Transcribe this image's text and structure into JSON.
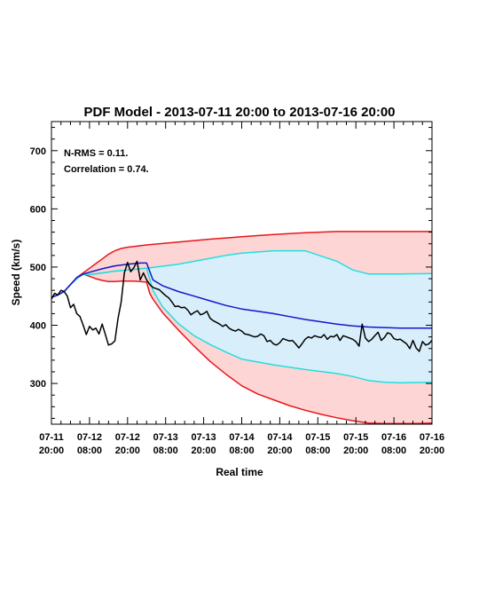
{
  "chart_data": {
    "type": "line",
    "title": "PDF Model - 2013-07-11 20:00 to 2013-07-16 20:00",
    "xlabel": "Real time",
    "ylabel": "Speed (km/s)",
    "xlim": [
      0,
      120
    ],
    "ylim": [
      230,
      750
    ],
    "yticks": [
      300,
      400,
      500,
      600,
      700
    ],
    "xticks": [
      {
        "x": 0,
        "line1": "07-11",
        "line2": "20:00"
      },
      {
        "x": 12,
        "line1": "07-12",
        "line2": "08:00"
      },
      {
        "x": 24,
        "line1": "07-12",
        "line2": "20:00"
      },
      {
        "x": 36,
        "line1": "07-13",
        "line2": "08:00"
      },
      {
        "x": 48,
        "line1": "07-13",
        "line2": "20:00"
      },
      {
        "x": 60,
        "line1": "07-14",
        "line2": "08:00"
      },
      {
        "x": 72,
        "line1": "07-14",
        "line2": "20:00"
      },
      {
        "x": 84,
        "line1": "07-15",
        "line2": "08:00"
      },
      {
        "x": 96,
        "line1": "07-15",
        "line2": "20:00"
      },
      {
        "x": 108,
        "line1": "07-16",
        "line2": "08:00"
      },
      {
        "x": 120,
        "line1": "07-16",
        "line2": "20:00"
      }
    ],
    "annotations": [
      "N-RMS = 0.11.",
      "Correlation = 0.74."
    ],
    "colors": {
      "outer_band_fill": "#fdd5d5",
      "inner_band_fill": "#d8effb",
      "outer_bound": "#e8161b",
      "inner_bound": "#22dede",
      "model": "#1414cc",
      "observed": "#000000"
    },
    "series": [
      {
        "role": "outer-upper",
        "x": [
          0,
          2,
          4,
          6,
          8,
          10,
          12,
          14,
          16,
          18,
          20,
          22,
          24,
          30,
          40,
          50,
          60,
          70,
          80,
          90,
          100,
          110,
          120
        ],
        "y": [
          448,
          452,
          458,
          470,
          482,
          490,
          498,
          506,
          514,
          522,
          528,
          532,
          534,
          538,
          543,
          548,
          552,
          556,
          559,
          561,
          561,
          561,
          561
        ]
      },
      {
        "role": "outer-lower",
        "x": [
          0,
          2,
          4,
          6,
          8,
          10,
          12,
          14,
          16,
          18,
          20,
          22,
          24,
          26,
          28,
          30,
          31,
          32,
          35,
          40,
          45,
          50,
          55,
          60,
          65,
          70,
          75,
          80,
          85,
          90,
          95,
          100,
          105,
          110,
          115,
          120
        ],
        "y": [
          448,
          452,
          458,
          470,
          480,
          488,
          484,
          480,
          477,
          475,
          475,
          476,
          476,
          476,
          475,
          474,
          455,
          445,
          422,
          392,
          364,
          338,
          316,
          296,
          282,
          272,
          262,
          254,
          247,
          241,
          236,
          232,
          231,
          231,
          231,
          232
        ]
      },
      {
        "role": "inner-upper",
        "x": [
          0,
          2,
          4,
          6,
          8,
          10,
          12,
          16,
          20,
          24,
          28,
          30,
          40,
          50,
          55,
          60,
          70,
          80,
          90,
          95,
          100,
          105,
          110,
          120
        ],
        "y": [
          448,
          452,
          458,
          470,
          480,
          488,
          487,
          490,
          493,
          495,
          497,
          498,
          505,
          515,
          520,
          524,
          528,
          528,
          510,
          495,
          488,
          488,
          488,
          489
        ]
      },
      {
        "role": "inner-lower",
        "x": [
          0,
          2,
          4,
          6,
          8,
          10,
          12,
          16,
          20,
          24,
          28,
          30,
          32,
          35,
          40,
          45,
          50,
          55,
          60,
          70,
          80,
          90,
          95,
          100,
          105,
          110,
          120
        ],
        "y": [
          448,
          452,
          458,
          470,
          480,
          488,
          487,
          490,
          493,
          495,
          497,
          498,
          460,
          432,
          403,
          382,
          367,
          354,
          342,
          332,
          324,
          317,
          312,
          305,
          302,
          301,
          302
        ]
      },
      {
        "role": "model",
        "x": [
          0,
          2,
          4,
          6,
          8,
          10,
          12,
          16,
          20,
          24,
          28,
          30,
          32,
          35,
          40,
          45,
          50,
          55,
          60,
          65,
          70,
          75,
          80,
          85,
          90,
          95,
          100,
          105,
          110,
          115,
          120
        ],
        "y": [
          448,
          452,
          458,
          470,
          482,
          488,
          491,
          497,
          502,
          505,
          507,
          507,
          478,
          468,
          458,
          450,
          442,
          434,
          428,
          424,
          420,
          415,
          410,
          406,
          402,
          399,
          397,
          396,
          395,
          395,
          395
        ]
      },
      {
        "role": "observed",
        "x": [
          0,
          1,
          2,
          3,
          4,
          5,
          6,
          7,
          8,
          9,
          10,
          11,
          12,
          13,
          14,
          15,
          16,
          17,
          18,
          19,
          20,
          21,
          22,
          23,
          24,
          25,
          26,
          27,
          28,
          29,
          30,
          31,
          32,
          33,
          34,
          35,
          36,
          37,
          38,
          39,
          40,
          41,
          42,
          43,
          44,
          45,
          46,
          47,
          48,
          49,
          50,
          51,
          52,
          53,
          54,
          55,
          56,
          57,
          58,
          59,
          60,
          61,
          62,
          63,
          64,
          65,
          66,
          67,
          68,
          69,
          70,
          71,
          72,
          73,
          74,
          75,
          76,
          77,
          78,
          79,
          80,
          81,
          82,
          83,
          84,
          85,
          86,
          87,
          88,
          89,
          90,
          91,
          92,
          93,
          94,
          95,
          96,
          97,
          98,
          99,
          100,
          101,
          102,
          103,
          104,
          105,
          106,
          107,
          108,
          109,
          110,
          111,
          112,
          113,
          114,
          115,
          116,
          117,
          118,
          119,
          120
        ],
        "y": [
          445,
          455,
          452,
          460,
          458,
          450,
          430,
          436,
          420,
          415,
          400,
          384,
          398,
          392,
          395,
          385,
          402,
          384,
          366,
          368,
          373,
          412,
          440,
          490,
          508,
          492,
          499,
          510,
          478,
          490,
          478,
          470,
          465,
          463,
          461,
          456,
          451,
          447,
          440,
          432,
          433,
          430,
          431,
          426,
          418,
          422,
          425,
          418,
          420,
          424,
          412,
          408,
          405,
          402,
          398,
          401,
          395,
          392,
          390,
          393,
          390,
          385,
          384,
          382,
          380,
          381,
          385,
          382,
          372,
          374,
          368,
          366,
          370,
          377,
          375,
          373,
          374,
          368,
          361,
          368,
          376,
          380,
          378,
          382,
          380,
          379,
          384,
          376,
          381,
          380,
          384,
          374,
          382,
          380,
          378,
          376,
          372,
          364,
          402,
          378,
          372,
          376,
          382,
          388,
          374,
          379,
          387,
          385,
          377,
          375,
          376,
          372,
          368,
          360,
          374,
          361,
          355,
          372,
          366,
          368,
          374
        ]
      }
    ]
  }
}
